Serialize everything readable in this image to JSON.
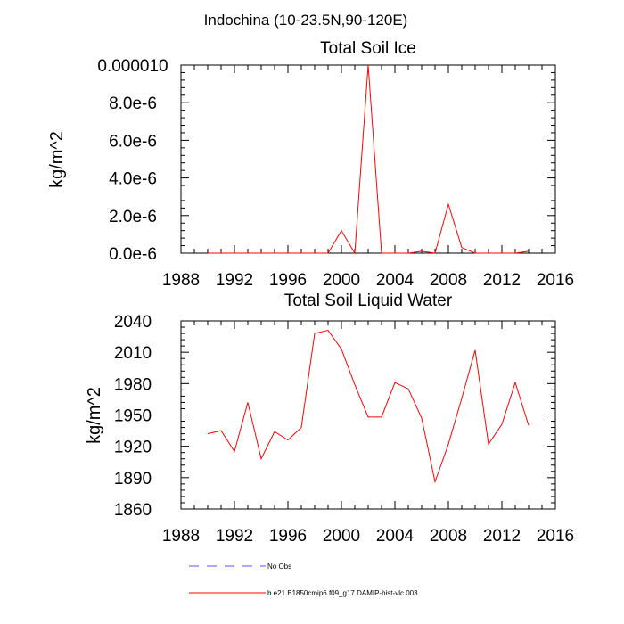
{
  "chart_data": {
    "suptitle": "Indochina (10-23.5N,90-120E)",
    "charts": [
      {
        "type": "line",
        "title": "Total Soil Ice",
        "xlabel": "",
        "ylabel": "kg/m^2",
        "xlim": [
          1988,
          2016
        ],
        "ylim": [
          0,
          1e-05
        ],
        "xticks": [
          1988,
          1992,
          1996,
          2000,
          2004,
          2008,
          2012,
          2016
        ],
        "yticks": [
          0,
          2e-06,
          4e-06,
          6e-06,
          8e-06,
          1e-05
        ],
        "ytick_labels": [
          "0.0e-6",
          "2.0e-6",
          "4.0e-6",
          "6.0e-6",
          "8.0e-6",
          "0.000010"
        ],
        "series": [
          {
            "name": "b.e21.B1850cmip6.f09_g17.DAMIP-hist-vlc.003",
            "color": "#ff0000",
            "x": [
              1990,
              1991,
              1992,
              1993,
              1994,
              1995,
              1996,
              1997,
              1998,
              1999,
              2000,
              2001,
              2002,
              2003,
              2004,
              2005,
              2006,
              2007,
              2008,
              2009,
              2010,
              2011,
              2012,
              2013,
              2014
            ],
            "y": [
              0,
              0,
              0,
              0,
              0,
              0,
              0,
              0,
              0,
              0,
              1.2e-06,
              0,
              1e-05,
              0,
              0,
              0,
              1e-07,
              0,
              2.6e-06,
              3e-07,
              0,
              0,
              0,
              0,
              1e-07
            ]
          }
        ]
      },
      {
        "type": "line",
        "title": "Total Soil Liquid Water",
        "xlabel": "",
        "ylabel": "kg/m^2",
        "xlim": [
          1988,
          2016
        ],
        "ylim": [
          1860,
          2040
        ],
        "xticks": [
          1988,
          1992,
          1996,
          2000,
          2004,
          2008,
          2012,
          2016
        ],
        "yticks": [
          1860,
          1890,
          1920,
          1950,
          1980,
          2010,
          2040
        ],
        "ytick_labels": [
          "1860",
          "1890",
          "1920",
          "1950",
          "1980",
          "2010",
          "2040"
        ],
        "series": [
          {
            "name": "b.e21.B1850cmip6.f09_g17.DAMIP-hist-vlc.003",
            "color": "#ff0000",
            "x": [
              1990,
              1991,
              1992,
              1993,
              1994,
              1995,
              1996,
              1997,
              1998,
              1999,
              2000,
              2001,
              2002,
              2003,
              2004,
              2005,
              2006,
              2007,
              2008,
              2009,
              2010,
              2011,
              2012,
              2013,
              2014
            ],
            "y": [
              1932,
              1935,
              1915,
              1962,
              1908,
              1934,
              1926,
              1938,
              2028,
              2031,
              2013,
              1979,
              1948,
              1948,
              1981,
              1975,
              1947,
              1886,
              1922,
              1966,
              2012,
              1922,
              1941,
              1981,
              1940
            ]
          }
        ]
      }
    ],
    "legend": [
      {
        "label": "No Obs",
        "color": "#5555ff",
        "style": "dashed"
      },
      {
        "label": "b.e21.B1850cmip6.f09_g17.DAMIP-hist-vlc.003",
        "color": "#ff0000",
        "style": "solid"
      }
    ]
  }
}
